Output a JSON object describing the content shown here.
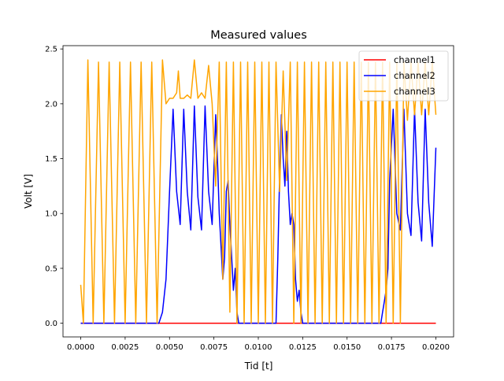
{
  "chart_data": {
    "type": "line",
    "title": "Measured values",
    "xlabel": "Tid [t]",
    "ylabel": "Volt [V]",
    "xlim": [
      -0.001,
      0.021
    ],
    "ylim": [
      -0.125,
      2.53
    ],
    "x_ticks": [
      0.0,
      0.0025,
      0.005,
      0.0075,
      0.01,
      0.0125,
      0.015,
      0.0175,
      0.02
    ],
    "x_tick_labels": [
      "0.0000",
      "0.0025",
      "0.0050",
      "0.0075",
      "0.0100",
      "0.0125",
      "0.0150",
      "0.0175",
      "0.0200"
    ],
    "y_ticks": [
      0.0,
      0.5,
      1.0,
      1.5,
      2.0,
      2.5
    ],
    "y_tick_labels": [
      "0.0",
      "0.5",
      "1.0",
      "1.5",
      "2.0",
      "2.5"
    ],
    "grid": false,
    "legend_position": "top-right",
    "series": [
      {
        "name": "channel1",
        "color": "#ff0000",
        "x": [
          0.0,
          0.02
        ],
        "y": [
          0.0,
          0.0
        ]
      },
      {
        "name": "channel2",
        "color": "#0000ff",
        "x": [
          0.0,
          0.0044,
          0.0046,
          0.0048,
          0.005,
          0.0052,
          0.0054,
          0.0056,
          0.0058,
          0.006,
          0.0062,
          0.0064,
          0.0066,
          0.0068,
          0.007,
          0.0072,
          0.0074,
          0.0076,
          0.0077,
          0.0078,
          0.0079,
          0.008,
          0.0081,
          0.0082,
          0.0083,
          0.0084,
          0.0085,
          0.0086,
          0.0087,
          0.0088,
          0.0089,
          0.009,
          0.0091,
          0.0092,
          0.0094,
          0.0096,
          0.0098,
          0.01,
          0.0102,
          0.0104,
          0.0106,
          0.0108,
          0.011,
          0.0111,
          0.0112,
          0.0113,
          0.0114,
          0.0115,
          0.0116,
          0.0117,
          0.0118,
          0.0119,
          0.012,
          0.0121,
          0.0122,
          0.0123,
          0.0124,
          0.0125,
          0.0126,
          0.0127,
          0.0128,
          0.013,
          0.0135,
          0.014,
          0.0145,
          0.015,
          0.0155,
          0.016,
          0.0165,
          0.0169,
          0.017,
          0.0171,
          0.0172,
          0.0173,
          0.0174,
          0.0176,
          0.0178,
          0.018,
          0.0182,
          0.0184,
          0.0186,
          0.0188,
          0.019,
          0.0192,
          0.0194,
          0.0196,
          0.0198,
          0.02
        ],
        "y": [
          0.0,
          0.0,
          0.1,
          0.4,
          1.2,
          1.95,
          1.2,
          0.9,
          1.95,
          1.2,
          0.85,
          1.98,
          1.15,
          0.85,
          1.98,
          1.2,
          0.9,
          1.9,
          1.5,
          1.0,
          0.7,
          0.4,
          0.6,
          1.2,
          1.3,
          0.9,
          0.6,
          0.3,
          0.5,
          0.1,
          0.0,
          0.0,
          0.0,
          0.0,
          0.0,
          0.0,
          0.0,
          0.0,
          0.0,
          0.0,
          0.0,
          0.0,
          0.0,
          0.6,
          1.35,
          1.9,
          1.5,
          1.25,
          1.75,
          1.2,
          0.9,
          1.0,
          0.9,
          0.4,
          0.2,
          0.3,
          0.1,
          0.0,
          0.0,
          0.0,
          0.0,
          0.0,
          0.0,
          0.0,
          0.0,
          0.0,
          0.0,
          0.0,
          0.0,
          0.0,
          0.1,
          0.2,
          0.3,
          0.5,
          1.3,
          1.95,
          1.0,
          0.85,
          1.95,
          1.0,
          0.8,
          1.95,
          1.1,
          0.75,
          1.95,
          1.1,
          0.7,
          1.6
        ]
      },
      {
        "name": "channel3",
        "color": "#ffa500",
        "x": [
          0.0,
          0.00015,
          0.0004,
          0.0007,
          0.001,
          0.0013,
          0.0016,
          0.0019,
          0.0022,
          0.0025,
          0.0028,
          0.0031,
          0.0034,
          0.0037,
          0.004,
          0.0043,
          0.0046,
          0.0048,
          0.005,
          0.0052,
          0.0054,
          0.0055,
          0.0056,
          0.0058,
          0.006,
          0.0062,
          0.0064,
          0.0066,
          0.0068,
          0.007,
          0.0072,
          0.0074,
          0.0076,
          0.0078,
          0.008,
          0.0082,
          0.0084,
          0.0086,
          0.0088,
          0.009,
          0.0092,
          0.0094,
          0.0096,
          0.0098,
          0.01,
          0.0102,
          0.0104,
          0.0106,
          0.0108,
          0.011,
          0.0112,
          0.0114,
          0.0116,
          0.0118,
          0.012,
          0.0122,
          0.0124,
          0.0126,
          0.0128,
          0.013,
          0.0132,
          0.0134,
          0.0136,
          0.0138,
          0.014,
          0.0142,
          0.0144,
          0.0146,
          0.0148,
          0.015,
          0.0152,
          0.0154,
          0.0156,
          0.0158,
          0.016,
          0.0162,
          0.0164,
          0.0166,
          0.0168,
          0.017,
          0.0172,
          0.0174,
          0.0176,
          0.0178,
          0.018,
          0.0182,
          0.0184,
          0.0186,
          0.0188,
          0.019,
          0.0192,
          0.0194,
          0.0196,
          0.0198,
          0.02
        ],
        "y": [
          0.35,
          0.0,
          2.4,
          0.0,
          2.38,
          0.0,
          2.38,
          0.0,
          2.38,
          0.0,
          2.38,
          0.0,
          2.38,
          0.0,
          2.38,
          0.0,
          2.4,
          2.0,
          2.05,
          2.05,
          2.1,
          2.3,
          2.05,
          2.05,
          2.08,
          2.05,
          2.4,
          2.05,
          2.1,
          2.05,
          2.35,
          2.0,
          1.25,
          2.38,
          0.4,
          2.38,
          0.1,
          2.38,
          0.0,
          2.38,
          0.0,
          2.38,
          0.0,
          2.38,
          0.0,
          2.38,
          0.0,
          2.38,
          0.0,
          2.38,
          1.2,
          2.3,
          1.3,
          2.38,
          0.0,
          2.38,
          0.0,
          2.38,
          0.0,
          2.38,
          0.0,
          2.38,
          0.0,
          2.38,
          0.0,
          2.38,
          0.0,
          2.38,
          0.0,
          2.38,
          0.0,
          2.38,
          0.0,
          2.38,
          0.0,
          2.38,
          0.0,
          2.38,
          0.0,
          2.38,
          0.0,
          2.38,
          0.0,
          2.38,
          0.0,
          2.38,
          1.85,
          2.38,
          1.9,
          2.38,
          1.9,
          2.38,
          1.9,
          2.38,
          1.9
        ]
      }
    ]
  }
}
